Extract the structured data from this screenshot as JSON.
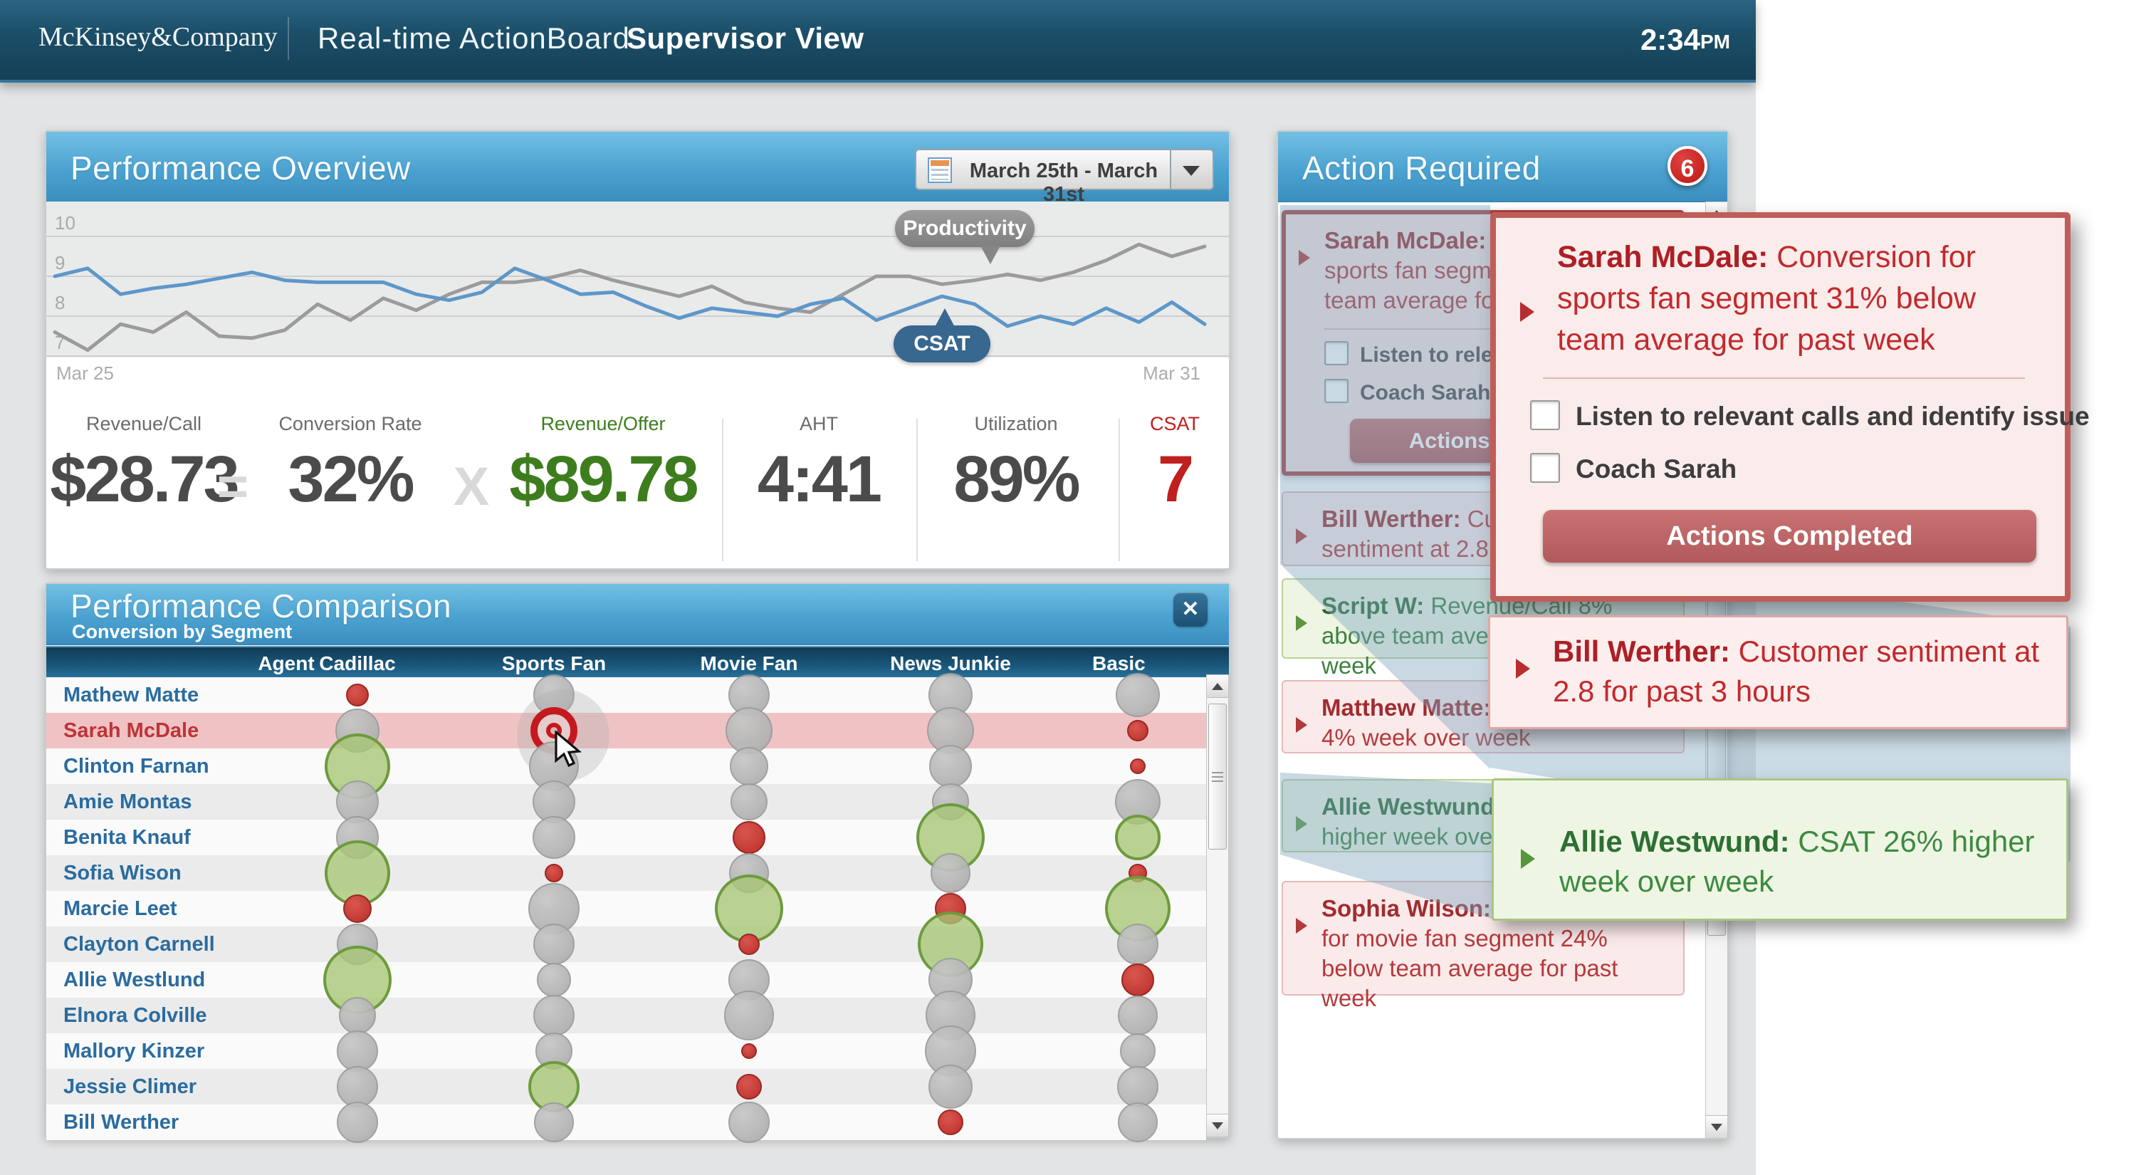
{
  "header": {
    "logo": "McKinsey&Company",
    "app_title": "Real-time ActionBoard",
    "view_title": "Supervisor View",
    "time": "2:34",
    "time_suffix": "PM"
  },
  "overview": {
    "title": "Performance Overview",
    "date_range": "March 25th - March 31st",
    "chart": {
      "type": "line",
      "x_labels": [
        "Mar 25",
        "Mar 31"
      ],
      "y_ticks": [
        10,
        9,
        8,
        7
      ],
      "ylim": [
        6.8,
        10.3
      ],
      "grid": true,
      "series": [
        {
          "name": "CSAT",
          "color": "#5e97c9",
          "values": [
            9.0,
            9.2,
            8.55,
            8.7,
            8.8,
            8.95,
            9.1,
            8.9,
            8.85,
            8.85,
            8.85,
            8.55,
            8.4,
            8.6,
            9.2,
            8.9,
            8.55,
            8.6,
            8.25,
            7.95,
            8.2,
            8.1,
            8.0,
            8.3,
            8.45,
            7.9,
            8.2,
            8.5,
            8.3,
            7.75,
            8.0,
            7.8,
            8.2,
            7.85,
            8.35,
            7.8
          ]
        },
        {
          "name": "Productivity",
          "color": "#9b9b9b",
          "values": [
            7.6,
            7.15,
            7.8,
            7.6,
            8.1,
            7.5,
            7.45,
            7.65,
            8.3,
            7.9,
            8.45,
            8.15,
            8.55,
            8.85,
            8.85,
            8.95,
            9.15,
            8.9,
            8.7,
            8.5,
            8.75,
            8.35,
            8.2,
            8.1,
            8.55,
            9.0,
            9.0,
            8.8,
            8.9,
            9.05,
            8.9,
            9.1,
            9.4,
            9.8,
            9.5,
            9.75
          ]
        }
      ]
    },
    "equation": {
      "items": [
        {
          "label": "Revenue/Call",
          "value": "$28.73",
          "tone": "dark"
        },
        {
          "label": "Conversion Rate",
          "value": "32%",
          "tone": "dark"
        },
        {
          "label": "Revenue/Offer",
          "value": "$89.78",
          "tone": "green"
        }
      ],
      "operators": [
        "=",
        "X"
      ]
    },
    "stats": [
      {
        "label": "AHT",
        "value": "4:41",
        "tone": "dark"
      },
      {
        "label": "Utilization",
        "value": "89%",
        "tone": "dark"
      },
      {
        "label": "CSAT",
        "value": "7",
        "tone": "red"
      }
    ]
  },
  "comparison": {
    "title": "Performance Comparison",
    "subtitle": "Conversion by Segment",
    "close_glyph": "✕",
    "columns": [
      "Agent",
      "Cadillac",
      "Sports Fan",
      "Movie Fan",
      "News Junkie",
      "Basic Access"
    ],
    "rows": [
      {
        "agent": "Mathew Matte",
        "highlighted": false,
        "cells": [
          {
            "c": "red",
            "d": 32
          },
          {
            "c": "gray",
            "d": 58
          },
          {
            "c": "gray",
            "d": 58
          },
          {
            "c": "gray",
            "d": 62
          },
          {
            "c": "gray",
            "d": 62
          }
        ]
      },
      {
        "agent": "Sarah McDale",
        "highlighted": true,
        "cells": [
          {
            "c": "gray",
            "d": 62
          },
          {
            "c": "target",
            "d": 66
          },
          {
            "c": "gray",
            "d": 66
          },
          {
            "c": "gray",
            "d": 66
          },
          {
            "c": "red",
            "d": 30
          }
        ]
      },
      {
        "agent": "Clinton Farnan",
        "highlighted": false,
        "cells": [
          {
            "c": "green",
            "d": 92
          },
          {
            "c": "gray",
            "d": 70
          },
          {
            "c": "gray",
            "d": 54
          },
          {
            "c": "gray",
            "d": 60
          },
          {
            "c": "red",
            "d": 22
          }
        ]
      },
      {
        "agent": "Amie Montas",
        "highlighted": false,
        "cells": [
          {
            "c": "gray",
            "d": 60
          },
          {
            "c": "gray",
            "d": 60
          },
          {
            "c": "gray",
            "d": 52
          },
          {
            "c": "gray",
            "d": 52
          },
          {
            "c": "gray",
            "d": 64
          }
        ]
      },
      {
        "agent": "Benita Knauf",
        "highlighted": false,
        "cells": [
          {
            "c": "gray",
            "d": 60
          },
          {
            "c": "gray",
            "d": 60
          },
          {
            "c": "red",
            "d": 46
          },
          {
            "c": "green",
            "d": 96
          },
          {
            "c": "green",
            "d": 64
          }
        ]
      },
      {
        "agent": "Sofia Wison",
        "highlighted": false,
        "cells": [
          {
            "c": "green",
            "d": 92
          },
          {
            "c": "red",
            "d": 26
          },
          {
            "c": "gray",
            "d": 56
          },
          {
            "c": "gray",
            "d": 56
          },
          {
            "c": "red",
            "d": 26
          }
        ]
      },
      {
        "agent": "Marcie Leet",
        "highlighted": false,
        "cells": [
          {
            "c": "red",
            "d": 40
          },
          {
            "c": "gray",
            "d": 72
          },
          {
            "c": "green",
            "d": 96
          },
          {
            "c": "red",
            "d": 44
          },
          {
            "c": "green",
            "d": 92
          }
        ]
      },
      {
        "agent": "Clayton Carnell",
        "highlighted": false,
        "cells": [
          {
            "c": "gray",
            "d": 58
          },
          {
            "c": "gray",
            "d": 58
          },
          {
            "c": "red",
            "d": 30
          },
          {
            "c": "green",
            "d": 92
          },
          {
            "c": "gray",
            "d": 58
          }
        ]
      },
      {
        "agent": "Allie Westlund",
        "highlighted": false,
        "cells": [
          {
            "c": "green",
            "d": 96
          },
          {
            "c": "gray",
            "d": 48
          },
          {
            "c": "gray",
            "d": 58
          },
          {
            "c": "gray",
            "d": 62
          },
          {
            "c": "red",
            "d": 46
          }
        ]
      },
      {
        "agent": "Elnora Colville",
        "highlighted": false,
        "cells": [
          {
            "c": "gray",
            "d": 52
          },
          {
            "c": "gray",
            "d": 58
          },
          {
            "c": "gray",
            "d": 70
          },
          {
            "c": "gray",
            "d": 70
          },
          {
            "c": "gray",
            "d": 56
          }
        ]
      },
      {
        "agent": "Mallory Kinzer",
        "highlighted": false,
        "cells": [
          {
            "c": "gray",
            "d": 58
          },
          {
            "c": "gray",
            "d": 52
          },
          {
            "c": "red",
            "d": 22
          },
          {
            "c": "gray",
            "d": 72
          },
          {
            "c": "gray",
            "d": 50
          }
        ]
      },
      {
        "agent": "Jessie Climer",
        "highlighted": false,
        "cells": [
          {
            "c": "gray",
            "d": 58
          },
          {
            "c": "green",
            "d": 72
          },
          {
            "c": "red",
            "d": 36
          },
          {
            "c": "gray",
            "d": 62
          },
          {
            "c": "gray",
            "d": 58
          }
        ]
      },
      {
        "agent": "Bill Werther",
        "highlighted": false,
        "cells": [
          {
            "c": "gray",
            "d": 58
          },
          {
            "c": "gray",
            "d": 56
          },
          {
            "c": "gray",
            "d": 58
          },
          {
            "c": "red",
            "d": 36
          },
          {
            "c": "gray",
            "d": 56
          }
        ]
      }
    ]
  },
  "actions": {
    "title": "Action Required",
    "badge": "6",
    "cards": [
      {
        "name": "Sarah McDale:",
        "text": "Conversion for sports fan segment 31% below team average for past week",
        "tone": "red",
        "selected": true,
        "checks": [
          "Listen to relevant calls and identify issue",
          "Coach Sarah"
        ],
        "button": "Actions Completed"
      },
      {
        "name": "Bill Werther:",
        "text": "Customer sentiment at 2.8 for past 3 hours",
        "tone": "red"
      },
      {
        "name": "Script W:",
        "text": "Revenue/Call 8% above team average for past week",
        "tone": "green"
      },
      {
        "name": "Matthew Matte:",
        "text": "Adherence down 4% week over week",
        "tone": "red"
      },
      {
        "name": "Allie Westwund:",
        "text": "CSAT 26% higher week over week",
        "tone": "green"
      },
      {
        "name": "Sophia Wilson:",
        "text": "Revenue/offer for movie fan segment 24% below team average for past week",
        "tone": "red"
      }
    ],
    "popups": {
      "sarah": {
        "name": "Sarah McDale:",
        "text": "Conversion for sports fan segment 31% below team average for past week",
        "checks": [
          "Listen to relevant calls and identify issue",
          "Coach Sarah"
        ],
        "button": "Actions Completed"
      },
      "bill": {
        "name": "Bill Werther:",
        "text": "Customer sentiment at 2.8 for past 3 hours"
      },
      "allie": {
        "name": "Allie Westwund:",
        "text": "CSAT 26% higher week over week"
      }
    }
  }
}
